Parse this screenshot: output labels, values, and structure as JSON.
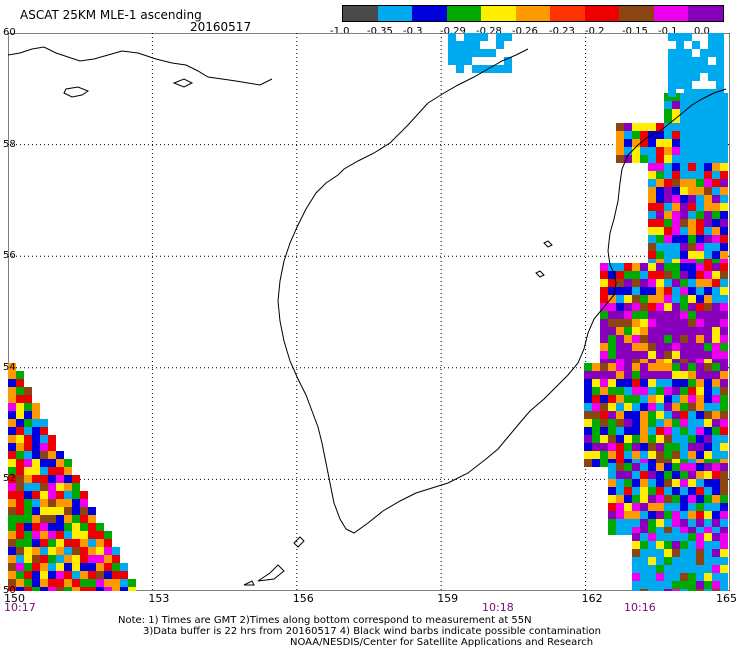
{
  "title": "ASCAT 25KM MLE-1 ascending",
  "date": "20160517",
  "colorbar": {
    "colors": [
      "#4a4a4a",
      "#00aaee",
      "#0000dd",
      "#00aa00",
      "#ffee00",
      "#ff9900",
      "#ff3300",
      "#ee0000",
      "#8b4513",
      "#ee00ee",
      "#8800bb"
    ],
    "labels": [
      "-1.0",
      "-0.35",
      "-0.3",
      "-0.29",
      "-0.28",
      "-0.26",
      "-0.23",
      "-0.2",
      "-0.15",
      "-0.1",
      "0.0"
    ]
  },
  "map": {
    "lon_ticks": [
      "150",
      "153",
      "156",
      "159",
      "162",
      "165"
    ],
    "lat_ticks": [
      "60",
      "58",
      "56",
      "54",
      "52",
      "50"
    ],
    "times": [
      "10:17",
      "10:18",
      "10:16"
    ],
    "lon_range": [
      150,
      165
    ],
    "lat_range": [
      50,
      60
    ],
    "gridlines": "dotted"
  },
  "notes": {
    "line1": "Note: 1) Times are GMT 2)Times along bottom correspond to measurement at 55N",
    "line2": "3)Data buffer is 22 hrs from 20160517 4) Black wind barbs indicate possible contamination",
    "line3": "NOAA/NESDIS/Center for Satellite Applications and Research"
  }
}
